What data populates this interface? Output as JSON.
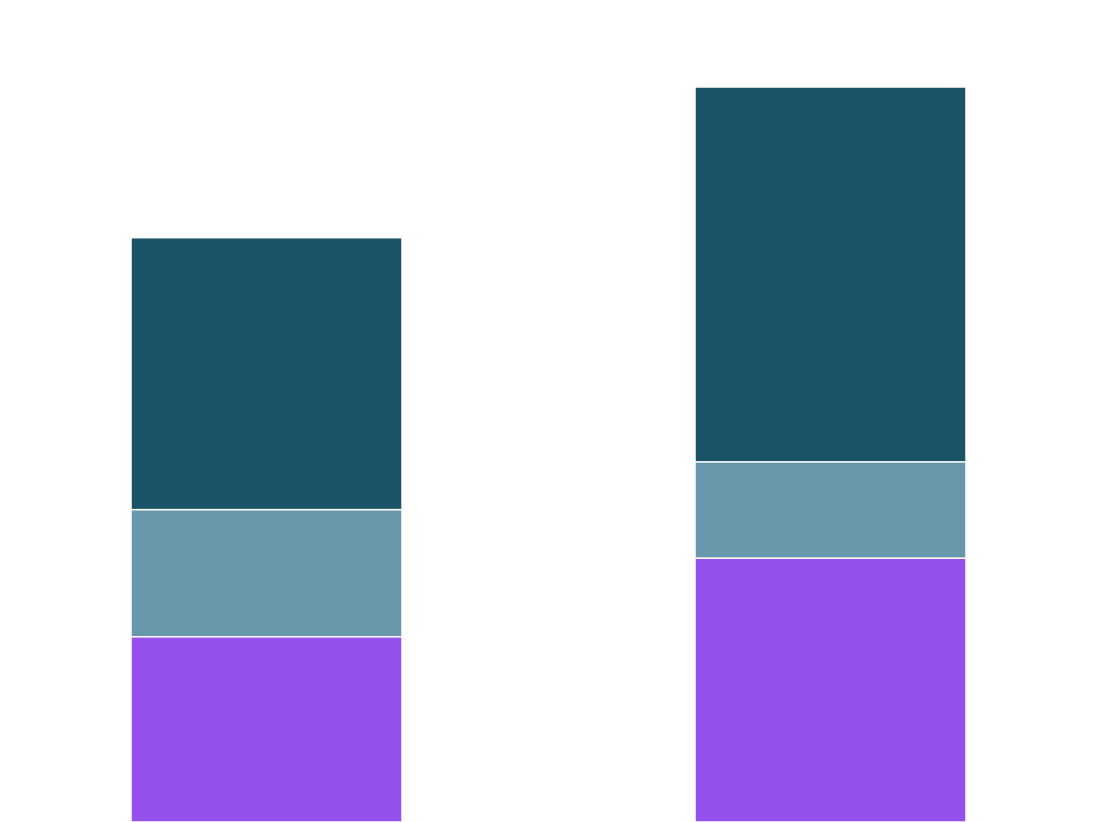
{
  "chart_data": {
    "type": "bar",
    "stacked": true,
    "title": "",
    "xlabel": "",
    "ylabel": "",
    "categories": [
      "",
      ""
    ],
    "ylim": [
      0,
      100
    ],
    "grid": false,
    "legend": "none",
    "series": [
      {
        "color": "#9650eb",
        "values": [
          25.2,
          35.9
        ]
      },
      {
        "color": "#6896aa",
        "values": [
          17.3,
          13.1
        ]
      },
      {
        "color": "#1b5366",
        "values": [
          37.0,
          51.0
        ]
      }
    ]
  }
}
